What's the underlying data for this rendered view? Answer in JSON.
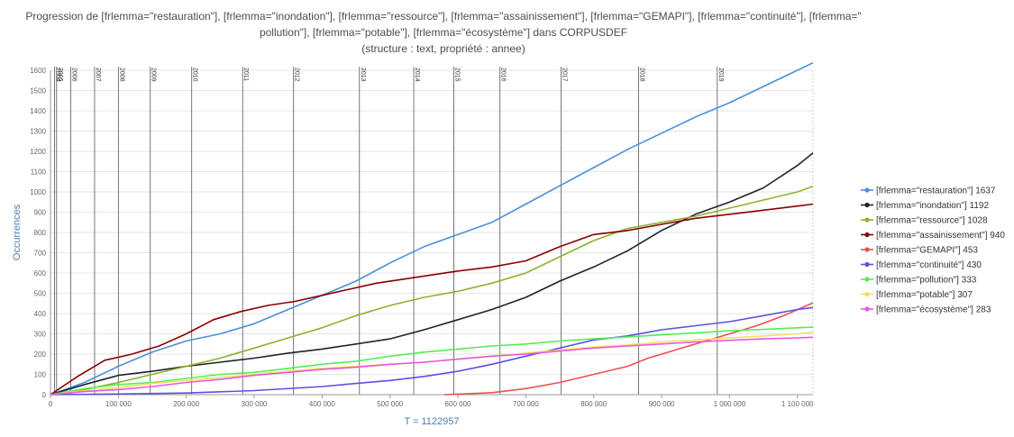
{
  "chart_data": {
    "type": "line",
    "title_lines": [
      "Progression de [frlemma=\"restauration\"], [frlemma=\"inondation\"], [frlemma=\"ressource\"], [frlemma=\"assainissement\"], [frlemma=\"GEMAPI\"], [frlemma=\"continuité\"], [frlemma=\"",
      "pollution\"], [frlemma=\"potable\"], [frlemma=\"écosystème\"] dans CORPUSDEF",
      "(structure : text, propriété : annee)"
    ],
    "xlabel": "T = 1122957",
    "ylabel": "Occurrences",
    "xlim": [
      0,
      1122957
    ],
    "ylim": [
      0,
      1600
    ],
    "x_ticks": [
      0,
      100000,
      200000,
      300000,
      400000,
      500000,
      600000,
      700000,
      800000,
      900000,
      1000000,
      1100000
    ],
    "x_tick_labels": [
      "0",
      "100 000",
      "200 000",
      "300 000",
      "400 000",
      "500 000",
      "600 000",
      "700 000",
      "800 000",
      "900 000",
      "1 000 000",
      "1 100 000"
    ],
    "y_ticks": [
      0,
      100,
      200,
      300,
      400,
      500,
      600,
      700,
      800,
      900,
      1000,
      1100,
      1200,
      1300,
      1400,
      1500,
      1600
    ],
    "year_markers": [
      {
        "label": "2004",
        "x": 6000
      },
      {
        "label": "2005",
        "x": 9000
      },
      {
        "label": "2006",
        "x": 30000
      },
      {
        "label": "2007",
        "x": 65000
      },
      {
        "label": "2008",
        "x": 100000
      },
      {
        "label": "2009",
        "x": 147000
      },
      {
        "label": "2010",
        "x": 208000
      },
      {
        "label": "2011",
        "x": 283000
      },
      {
        "label": "2012",
        "x": 358000
      },
      {
        "label": "2013",
        "x": 455000
      },
      {
        "label": "2014",
        "x": 535000
      },
      {
        "label": "2015",
        "x": 594000
      },
      {
        "label": "2016",
        "x": 662000
      },
      {
        "label": "2017",
        "x": 752000
      },
      {
        "label": "2018",
        "x": 866000
      },
      {
        "label": "2019",
        "x": 982000
      }
    ],
    "legend_position": "right",
    "grid": true,
    "series": [
      {
        "name": "[frlemma=\"restauration\"] 1637",
        "color": "#4a90d9",
        "points": [
          [
            0,
            0
          ],
          [
            50000,
            60
          ],
          [
            100000,
            140
          ],
          [
            150000,
            210
          ],
          [
            200000,
            265
          ],
          [
            250000,
            300
          ],
          [
            300000,
            350
          ],
          [
            350000,
            420
          ],
          [
            400000,
            490
          ],
          [
            450000,
            560
          ],
          [
            500000,
            650
          ],
          [
            550000,
            730
          ],
          [
            600000,
            790
          ],
          [
            650000,
            850
          ],
          [
            700000,
            940
          ],
          [
            750000,
            1030
          ],
          [
            800000,
            1120
          ],
          [
            850000,
            1210
          ],
          [
            900000,
            1290
          ],
          [
            950000,
            1370
          ],
          [
            1000000,
            1440
          ],
          [
            1050000,
            1520
          ],
          [
            1100000,
            1600
          ],
          [
            1122957,
            1637
          ]
        ]
      },
      {
        "name": "[frlemma=\"inondation\"] 1192",
        "color": "#1a2430",
        "points": [
          [
            0,
            0
          ],
          [
            50000,
            50
          ],
          [
            100000,
            95
          ],
          [
            150000,
            115
          ],
          [
            200000,
            140
          ],
          [
            250000,
            160
          ],
          [
            300000,
            180
          ],
          [
            350000,
            205
          ],
          [
            400000,
            225
          ],
          [
            450000,
            250
          ],
          [
            500000,
            275
          ],
          [
            550000,
            320
          ],
          [
            600000,
            370
          ],
          [
            650000,
            420
          ],
          [
            700000,
            480
          ],
          [
            750000,
            560
          ],
          [
            800000,
            630
          ],
          [
            850000,
            710
          ],
          [
            900000,
            810
          ],
          [
            950000,
            890
          ],
          [
            1000000,
            950
          ],
          [
            1050000,
            1020
          ],
          [
            1100000,
            1130
          ],
          [
            1122957,
            1192
          ]
        ]
      },
      {
        "name": "[frlemma=\"ressource\"] 1028",
        "color": "#8db32b",
        "points": [
          [
            0,
            0
          ],
          [
            50000,
            25
          ],
          [
            100000,
            60
          ],
          [
            150000,
            100
          ],
          [
            200000,
            140
          ],
          [
            250000,
            180
          ],
          [
            300000,
            230
          ],
          [
            350000,
            280
          ],
          [
            400000,
            330
          ],
          [
            450000,
            390
          ],
          [
            500000,
            440
          ],
          [
            550000,
            480
          ],
          [
            600000,
            510
          ],
          [
            650000,
            550
          ],
          [
            700000,
            600
          ],
          [
            750000,
            680
          ],
          [
            800000,
            760
          ],
          [
            850000,
            820
          ],
          [
            900000,
            850
          ],
          [
            950000,
            880
          ],
          [
            1000000,
            920
          ],
          [
            1050000,
            960
          ],
          [
            1100000,
            1000
          ],
          [
            1122957,
            1028
          ]
        ]
      },
      {
        "name": "[frlemma=\"assainissement\"] 940",
        "color": "#8b0000",
        "points": [
          [
            0,
            0
          ],
          [
            40000,
            90
          ],
          [
            80000,
            170
          ],
          [
            120000,
            200
          ],
          [
            160000,
            240
          ],
          [
            200000,
            300
          ],
          [
            240000,
            370
          ],
          [
            280000,
            410
          ],
          [
            320000,
            440
          ],
          [
            360000,
            460
          ],
          [
            400000,
            490
          ],
          [
            440000,
            520
          ],
          [
            480000,
            550
          ],
          [
            520000,
            570
          ],
          [
            560000,
            590
          ],
          [
            600000,
            610
          ],
          [
            650000,
            630
          ],
          [
            700000,
            660
          ],
          [
            750000,
            730
          ],
          [
            800000,
            790
          ],
          [
            850000,
            810
          ],
          [
            900000,
            840
          ],
          [
            950000,
            870
          ],
          [
            1000000,
            890
          ],
          [
            1050000,
            910
          ],
          [
            1100000,
            930
          ],
          [
            1122957,
            940
          ]
        ]
      },
      {
        "name": "[frlemma=\"GEMAPI\"] 453",
        "color": "#f05050",
        "points": [
          [
            580000,
            0
          ],
          [
            650000,
            10
          ],
          [
            700000,
            30
          ],
          [
            750000,
            60
          ],
          [
            800000,
            100
          ],
          [
            850000,
            140
          ],
          [
            880000,
            180
          ],
          [
            920000,
            220
          ],
          [
            960000,
            260
          ],
          [
            1000000,
            300
          ],
          [
            1040000,
            340
          ],
          [
            1080000,
            390
          ],
          [
            1122957,
            453
          ]
        ]
      },
      {
        "name": "[frlemma=\"continuité\"] 430",
        "color": "#5a52e0",
        "points": [
          [
            0,
            0
          ],
          [
            100000,
            3
          ],
          [
            200000,
            8
          ],
          [
            300000,
            20
          ],
          [
            400000,
            40
          ],
          [
            450000,
            55
          ],
          [
            500000,
            70
          ],
          [
            550000,
            90
          ],
          [
            600000,
            115
          ],
          [
            650000,
            150
          ],
          [
            700000,
            190
          ],
          [
            750000,
            230
          ],
          [
            800000,
            270
          ],
          [
            850000,
            290
          ],
          [
            900000,
            320
          ],
          [
            950000,
            340
          ],
          [
            1000000,
            360
          ],
          [
            1050000,
            390
          ],
          [
            1100000,
            420
          ],
          [
            1122957,
            430
          ]
        ]
      },
      {
        "name": "[frlemma=\"pollution\"] 333",
        "color": "#55ee55",
        "points": [
          [
            0,
            0
          ],
          [
            50000,
            30
          ],
          [
            100000,
            50
          ],
          [
            150000,
            60
          ],
          [
            200000,
            80
          ],
          [
            250000,
            100
          ],
          [
            300000,
            110
          ],
          [
            350000,
            130
          ],
          [
            400000,
            150
          ],
          [
            450000,
            165
          ],
          [
            500000,
            190
          ],
          [
            550000,
            210
          ],
          [
            600000,
            225
          ],
          [
            650000,
            240
          ],
          [
            700000,
            250
          ],
          [
            750000,
            265
          ],
          [
            800000,
            275
          ],
          [
            850000,
            285
          ],
          [
            900000,
            295
          ],
          [
            950000,
            305
          ],
          [
            1000000,
            315
          ],
          [
            1050000,
            322
          ],
          [
            1100000,
            330
          ],
          [
            1122957,
            333
          ]
        ]
      },
      {
        "name": "[frlemma=\"potable\"] 307",
        "color": "#f2e060",
        "points": [
          [
            0,
            0
          ],
          [
            50000,
            20
          ],
          [
            100000,
            35
          ],
          [
            150000,
            55
          ],
          [
            200000,
            70
          ],
          [
            250000,
            85
          ],
          [
            300000,
            100
          ],
          [
            350000,
            115
          ],
          [
            400000,
            130
          ],
          [
            450000,
            140
          ],
          [
            500000,
            150
          ],
          [
            550000,
            160
          ],
          [
            600000,
            175
          ],
          [
            650000,
            190
          ],
          [
            700000,
            205
          ],
          [
            750000,
            220
          ],
          [
            800000,
            235
          ],
          [
            850000,
            245
          ],
          [
            900000,
            260
          ],
          [
            950000,
            270
          ],
          [
            1000000,
            280
          ],
          [
            1050000,
            290
          ],
          [
            1100000,
            300
          ],
          [
            1122957,
            307
          ]
        ]
      },
      {
        "name": "[frlemma=\"écosystème\"] 283",
        "color": "#e858e0",
        "points": [
          [
            0,
            0
          ],
          [
            50000,
            15
          ],
          [
            100000,
            25
          ],
          [
            150000,
            40
          ],
          [
            200000,
            60
          ],
          [
            250000,
            75
          ],
          [
            300000,
            95
          ],
          [
            350000,
            110
          ],
          [
            400000,
            125
          ],
          [
            450000,
            135
          ],
          [
            500000,
            150
          ],
          [
            550000,
            160
          ],
          [
            600000,
            175
          ],
          [
            650000,
            190
          ],
          [
            700000,
            200
          ],
          [
            750000,
            215
          ],
          [
            800000,
            230
          ],
          [
            850000,
            240
          ],
          [
            900000,
            250
          ],
          [
            950000,
            260
          ],
          [
            1000000,
            268
          ],
          [
            1050000,
            275
          ],
          [
            1100000,
            280
          ],
          [
            1122957,
            283
          ]
        ]
      }
    ]
  }
}
